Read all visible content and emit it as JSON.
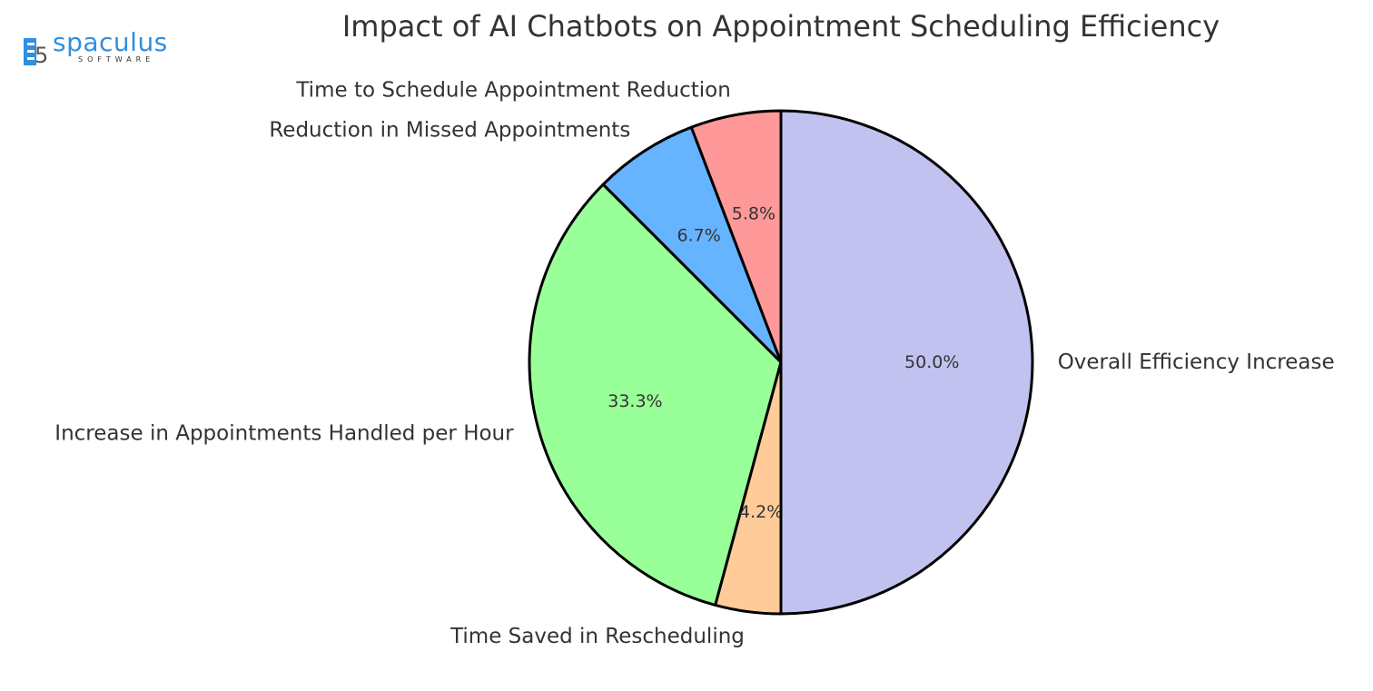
{
  "logo": {
    "word": "spaculus",
    "sub": "SOFTWARE"
  },
  "chart_data": {
    "type": "pie",
    "title": "Impact of AI Chatbots on Appointment Scheduling Efficiency",
    "start_angle_deg": 90,
    "direction": "counterclockwise",
    "edge_color": "#000000",
    "slices": [
      {
        "label": "Time to Schedule Appointment Reduction",
        "value": 5.8,
        "pct_label": "5.8%",
        "color": "#ff9999"
      },
      {
        "label": "Reduction in Missed Appointments",
        "value": 6.7,
        "pct_label": "6.7%",
        "color": "#66b3ff"
      },
      {
        "label": "Increase in Appointments Handled per Hour",
        "value": 33.3,
        "pct_label": "33.3%",
        "color": "#99ff99"
      },
      {
        "label": "Time Saved in Rescheduling",
        "value": 4.2,
        "pct_label": "4.2%",
        "color": "#ffcc99"
      },
      {
        "label": "Overall Efficiency Increase",
        "value": 50.0,
        "pct_label": "50.0%",
        "color": "#c2c2f0"
      }
    ]
  }
}
